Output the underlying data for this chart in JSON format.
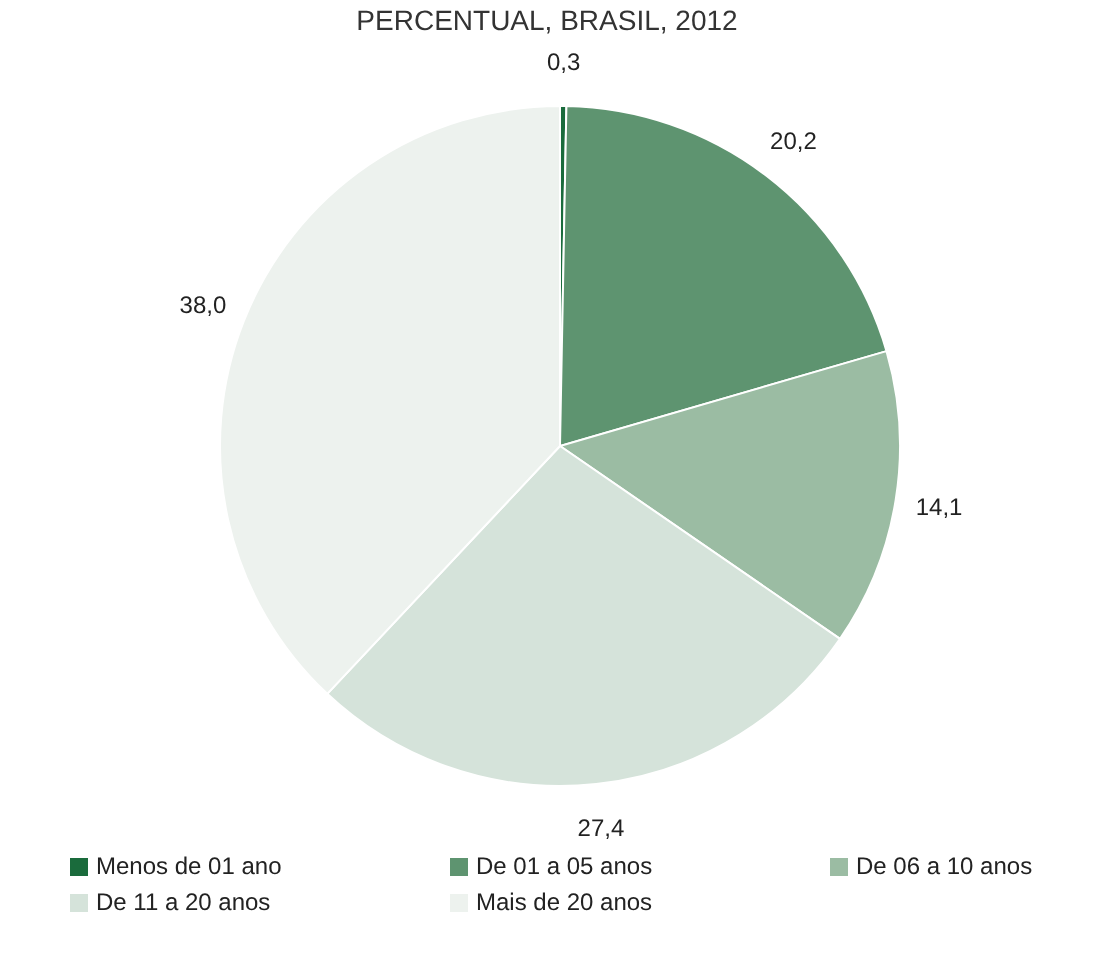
{
  "chart_data": {
    "type": "pie",
    "title": "PERCENTUAL, BRASIL, 2012",
    "categories": [
      "Menos de 01 ano",
      "De 01 a 05 anos",
      "De 06 a 10 anos",
      "De 11 a 20 anos",
      "Mais de 20 anos"
    ],
    "values": [
      0.3,
      20.2,
      14.1,
      27.4,
      38.0
    ],
    "colors": [
      "#1a6b3c",
      "#5e9470",
      "#9bbca3",
      "#d5e3da",
      "#edf2ee"
    ],
    "value_labels": [
      "0,3",
      "20,2",
      "14,1",
      "27,4",
      "38,0"
    ],
    "legend": "bottom"
  }
}
